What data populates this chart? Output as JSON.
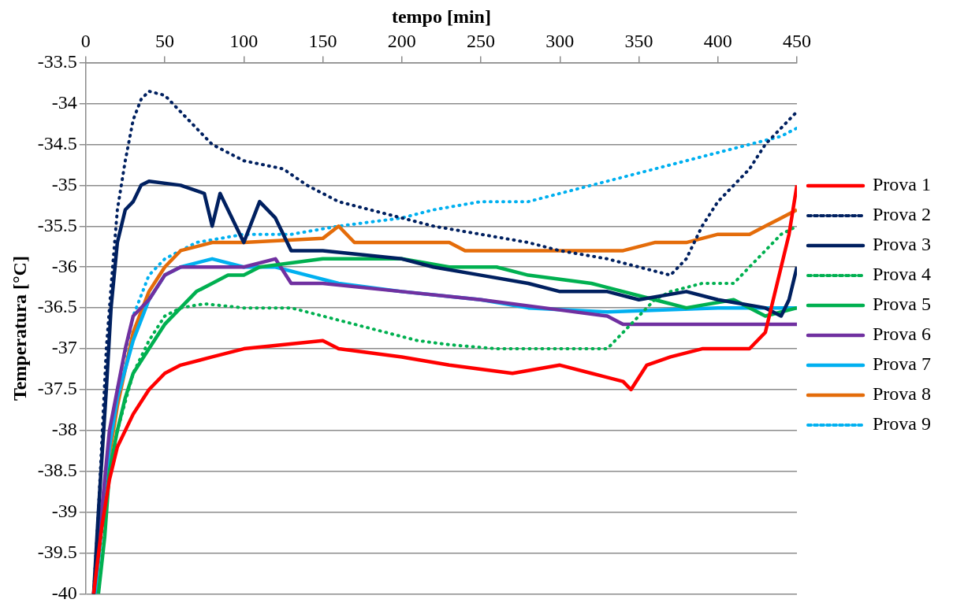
{
  "chart_data": {
    "type": "line",
    "xlabel": "tempo [min]",
    "ylabel": "Temperatura [°C]",
    "xlim": [
      0,
      450
    ],
    "xticks": [
      0,
      50,
      100,
      150,
      200,
      250,
      300,
      350,
      400,
      450
    ],
    "ylim": [
      -40,
      -33.5
    ],
    "yticks": [
      -40,
      -39.5,
      -39,
      -38.5,
      -38,
      -37.5,
      -37,
      -36.5,
      -36,
      -35.5,
      -35,
      -34.5,
      -34,
      -33.5
    ],
    "grid": "y",
    "legend": "right",
    "marker": "none",
    "series": [
      {
        "name": "Prova 1",
        "color": "#ff0000",
        "line_style": "solid",
        "x": [
          5,
          10,
          15,
          20,
          30,
          40,
          50,
          60,
          80,
          100,
          150,
          160,
          200,
          230,
          270,
          300,
          320,
          340,
          345,
          355,
          370,
          390,
          420,
          430,
          440,
          445,
          450
        ],
        "values": [
          -40,
          -39.2,
          -38.6,
          -38.2,
          -37.8,
          -37.5,
          -37.3,
          -37.2,
          -37.1,
          -37,
          -36.9,
          -37,
          -37.1,
          -37.2,
          -37.3,
          -37.2,
          -37.3,
          -37.4,
          -37.5,
          -37.2,
          -37.1,
          -37,
          -37,
          -36.8,
          -36,
          -35.6,
          -35
        ]
      },
      {
        "name": "Prova 2",
        "color": "#002060",
        "line_style": "dotted",
        "x": [
          5,
          8,
          10,
          13,
          17,
          20,
          25,
          30,
          35,
          40,
          50,
          60,
          70,
          80,
          90,
          100,
          125,
          140,
          160,
          180,
          200,
          220,
          250,
          280,
          300,
          330,
          350,
          370,
          380,
          390,
          400,
          410,
          420,
          430,
          440,
          450
        ],
        "values": [
          -40,
          -39,
          -38.2,
          -37,
          -36,
          -35.3,
          -34.7,
          -34.2,
          -33.95,
          -33.85,
          -33.9,
          -34.1,
          -34.3,
          -34.5,
          -34.6,
          -34.7,
          -34.8,
          -35,
          -35.2,
          -35.3,
          -35.4,
          -35.5,
          -35.6,
          -35.7,
          -35.8,
          -35.9,
          -36,
          -36.1,
          -35.9,
          -35.5,
          -35.2,
          -35,
          -34.8,
          -34.5,
          -34.3,
          -34.1
        ]
      },
      {
        "name": "Prova 3",
        "color": "#002060",
        "line_style": "solid",
        "x": [
          5,
          8,
          10,
          13,
          16,
          20,
          25,
          30,
          35,
          40,
          60,
          75,
          80,
          85,
          90,
          100,
          110,
          120,
          130,
          150,
          200,
          220,
          250,
          280,
          300,
          330,
          350,
          380,
          400,
          430,
          440,
          445,
          450
        ],
        "values": [
          -40,
          -39,
          -38.4,
          -37.5,
          -36.5,
          -35.7,
          -35.3,
          -35.2,
          -35,
          -34.95,
          -35,
          -35.1,
          -35.5,
          -35.1,
          -35.3,
          -35.7,
          -35.2,
          -35.4,
          -35.8,
          -35.8,
          -35.9,
          -36,
          -36.1,
          -36.2,
          -36.3,
          -36.3,
          -36.4,
          -36.3,
          -36.4,
          -36.5,
          -36.6,
          -36.4,
          -36
        ]
      },
      {
        "name": "Prova 4",
        "color": "#00b050",
        "line_style": "dotted",
        "x": [
          5,
          10,
          15,
          20,
          30,
          40,
          50,
          60,
          75,
          100,
          130,
          150,
          170,
          190,
          210,
          230,
          260,
          300,
          330,
          340,
          350,
          360,
          370,
          390,
          410,
          420,
          430,
          440,
          450
        ],
        "values": [
          -40,
          -39.3,
          -38.5,
          -38,
          -37.3,
          -36.9,
          -36.6,
          -36.5,
          -36.45,
          -36.5,
          -36.5,
          -36.6,
          -36.7,
          -36.8,
          -36.9,
          -36.95,
          -37,
          -37,
          -37,
          -36.8,
          -36.6,
          -36.4,
          -36.3,
          -36.2,
          -36.2,
          -36,
          -35.8,
          -35.6,
          -35.5
        ]
      },
      {
        "name": "Prova 5",
        "color": "#00b050",
        "line_style": "solid",
        "x": [
          8,
          12,
          15,
          20,
          25,
          30,
          40,
          50,
          60,
          70,
          80,
          90,
          100,
          110,
          150,
          200,
          230,
          260,
          280,
          320,
          340,
          360,
          380,
          410,
          430,
          450
        ],
        "values": [
          -40,
          -39.3,
          -38.5,
          -38,
          -37.6,
          -37.3,
          -37,
          -36.7,
          -36.5,
          -36.3,
          -36.2,
          -36.1,
          -36.1,
          -36,
          -35.9,
          -35.9,
          -36,
          -36,
          -36.1,
          -36.2,
          -36.3,
          -36.4,
          -36.5,
          -36.4,
          -36.6,
          -36.5
        ]
      },
      {
        "name": "Prova 6",
        "color": "#7030a0",
        "line_style": "solid",
        "x": [
          5,
          10,
          15,
          20,
          25,
          30,
          40,
          50,
          60,
          80,
          100,
          120,
          130,
          150,
          200,
          250,
          290,
          330,
          340,
          400,
          450
        ],
        "values": [
          -40,
          -39,
          -38,
          -37.5,
          -37,
          -36.6,
          -36.4,
          -36.1,
          -36,
          -36,
          -36,
          -35.9,
          -36.2,
          -36.2,
          -36.3,
          -36.4,
          -36.5,
          -36.6,
          -36.7,
          -36.7,
          -36.7
        ]
      },
      {
        "name": "Prova 7",
        "color": "#00b0f0",
        "line_style": "solid",
        "x": [
          6,
          15,
          20,
          30,
          40,
          50,
          60,
          80,
          100,
          120,
          140,
          160,
          200,
          250,
          280,
          330,
          400,
          450
        ],
        "values": [
          -40,
          -38.2,
          -37.6,
          -36.9,
          -36.4,
          -36.1,
          -36,
          -35.9,
          -36,
          -36,
          -36.1,
          -36.2,
          -36.3,
          -36.4,
          -36.5,
          -36.55,
          -36.5,
          -36.5
        ]
      },
      {
        "name": "Prova 8",
        "color": "#e46c0a",
        "line_style": "solid",
        "x": [
          6,
          10,
          15,
          20,
          30,
          40,
          50,
          60,
          80,
          100,
          150,
          160,
          170,
          200,
          230,
          240,
          260,
          300,
          340,
          360,
          380,
          400,
          420,
          430,
          440,
          450
        ],
        "values": [
          -40,
          -39,
          -38.3,
          -37.7,
          -36.8,
          -36.3,
          -36,
          -35.8,
          -35.7,
          -35.7,
          -35.65,
          -35.5,
          -35.7,
          -35.7,
          -35.7,
          -35.8,
          -35.8,
          -35.8,
          -35.8,
          -35.7,
          -35.7,
          -35.6,
          -35.6,
          -35.5,
          -35.4,
          -35.3
        ]
      },
      {
        "name": "Prova 9",
        "color": "#00b0f0",
        "line_style": "dotted",
        "x": [
          6,
          10,
          15,
          20,
          30,
          40,
          50,
          70,
          100,
          130,
          160,
          200,
          220,
          250,
          280,
          300,
          320,
          340,
          360,
          380,
          400,
          420,
          440,
          450
        ],
        "values": [
          -40,
          -39,
          -38.2,
          -37.5,
          -36.6,
          -36.1,
          -35.9,
          -35.7,
          -35.6,
          -35.6,
          -35.5,
          -35.4,
          -35.3,
          -35.2,
          -35.2,
          -35.1,
          -35,
          -34.9,
          -34.8,
          -34.7,
          -34.6,
          -34.5,
          -34.4,
          -34.3
        ]
      }
    ]
  }
}
